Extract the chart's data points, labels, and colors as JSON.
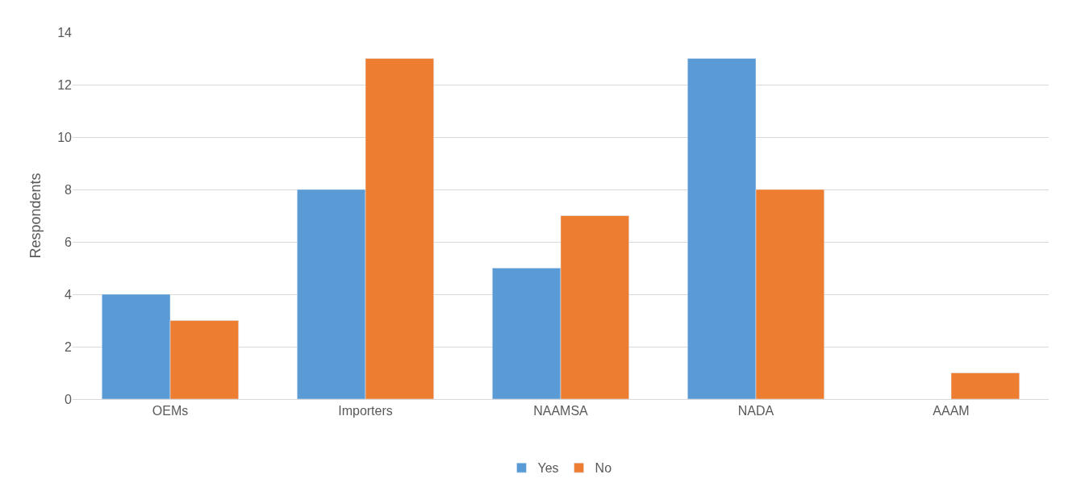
{
  "chart_data": {
    "type": "bar",
    "ylabel": "Respondents",
    "categories": [
      "OEMs",
      "Importers",
      "NAAMSA",
      "NADA",
      "AAAM"
    ],
    "series": [
      {
        "name": "Yes",
        "color": "#5b9bd5",
        "values": [
          4,
          8,
          5,
          13,
          null
        ]
      },
      {
        "name": "No",
        "color": "#ed7d31",
        "values": [
          3,
          13,
          7,
          8,
          1
        ]
      }
    ],
    "ylim": [
      0,
      14
    ],
    "yticks": [
      0,
      2,
      4,
      6,
      8,
      10,
      12,
      14
    ],
    "grid": "y",
    "legend": "bottom"
  }
}
